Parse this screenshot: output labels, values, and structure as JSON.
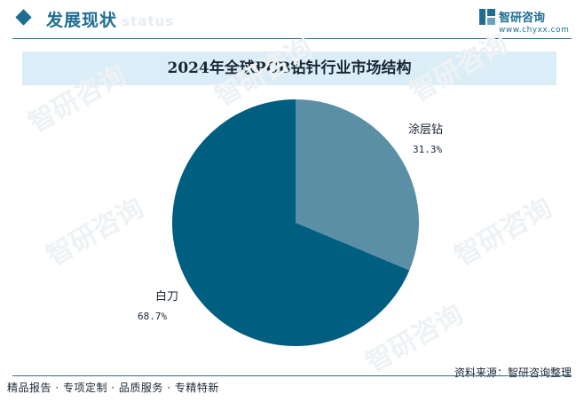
{
  "header": {
    "title": "发展现状",
    "subtitle": "ent status",
    "brand_name": "智研咨询",
    "brand_url": "www.chyxx.com"
  },
  "footer": {
    "slogan": "精品报告 · 专项定制 · 品质服务 · 专精特新",
    "source": "资料来源：智研咨询整理"
  },
  "watermark_text": "智研咨询",
  "colors": {
    "brand": "#1f6e91",
    "slice_main": "#005e80",
    "slice_minor": "#5a8fa6",
    "title_bar": "#dbeef7"
  },
  "chart_data": {
    "type": "pie",
    "title": "2024年全球PCB钻针行业市场结构",
    "slices": [
      {
        "label": "涂层钻",
        "value": 31.3,
        "display": "31.3%",
        "color": "#5a8fa6"
      },
      {
        "label": "白刀",
        "value": 68.7,
        "display": "68.7%",
        "color": "#005e80"
      }
    ]
  }
}
